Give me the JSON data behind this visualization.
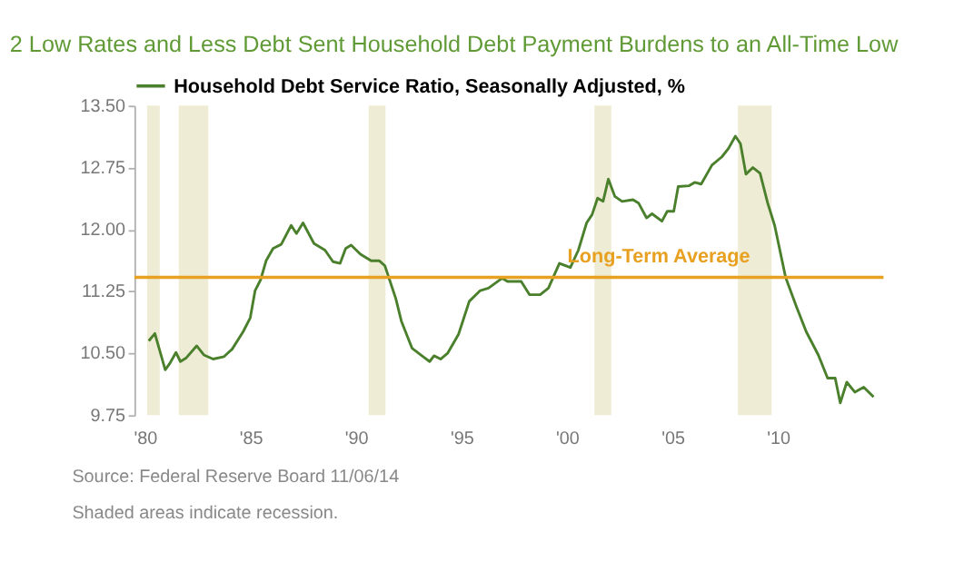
{
  "chart_data": {
    "type": "line",
    "title": "2    Low Rates and Less Debt Sent Household Debt Payment Burdens to an All-Time Low",
    "series": [
      {
        "name": "Household Debt Service Ratio, Seasonally Adjusted, %",
        "color": "#4a7f2c",
        "x": [
          1980.18,
          1980.47,
          1980.96,
          1981.16,
          1981.47,
          1981.68,
          1981.94,
          1982.45,
          1982.79,
          1983.23,
          1983.75,
          1984.13,
          1984.65,
          1984.99,
          1985.22,
          1985.48,
          1985.74,
          1986.07,
          1986.46,
          1986.93,
          1987.18,
          1987.49,
          1988.01,
          1988.53,
          1988.91,
          1989.25,
          1989.51,
          1989.77,
          1990.21,
          1990.72,
          1991.11,
          1991.37,
          1991.89,
          1992.15,
          1992.66,
          1993.18,
          1993.49,
          1993.7,
          1994.01,
          1994.34,
          1994.86,
          1995.37,
          1995.89,
          1996.28,
          1996.93,
          1997.18,
          1997.83,
          1998.22,
          1998.73,
          1999.12,
          1999.64,
          2000.16,
          2000.54,
          2000.93,
          2001.19,
          2001.45,
          2001.71,
          2001.96,
          2002.27,
          2002.61,
          2003.13,
          2003.39,
          2003.77,
          2004.03,
          2004.5,
          2004.75,
          2005.06,
          2005.27,
          2005.79,
          2006.05,
          2006.36,
          2006.87,
          2007.34,
          2007.65,
          2007.98,
          2008.22,
          2008.48,
          2008.81,
          2009.15,
          2009.51,
          2009.84,
          2010.36,
          2010.88,
          2011.34,
          2011.91,
          2012.35,
          2012.71,
          2012.95,
          2013.26,
          2013.64,
          2014.06,
          2014.53
        ],
        "values": [
          10.65,
          10.74,
          10.3,
          10.37,
          10.51,
          10.4,
          10.44,
          10.59,
          10.48,
          10.43,
          10.46,
          10.55,
          10.76,
          10.93,
          11.26,
          11.39,
          11.62,
          11.77,
          11.82,
          12.05,
          11.95,
          12.08,
          11.83,
          11.75,
          11.61,
          11.59,
          11.77,
          11.81,
          11.7,
          11.62,
          11.62,
          11.56,
          11.16,
          10.89,
          10.56,
          10.46,
          10.4,
          10.47,
          10.43,
          10.5,
          10.73,
          11.13,
          11.26,
          11.29,
          11.41,
          11.37,
          11.37,
          11.21,
          11.21,
          11.29,
          11.59,
          11.54,
          11.75,
          12.08,
          12.18,
          12.38,
          12.34,
          12.61,
          12.4,
          12.34,
          12.36,
          12.32,
          12.14,
          12.19,
          12.1,
          12.22,
          12.22,
          12.52,
          12.53,
          12.57,
          12.55,
          12.78,
          12.88,
          12.98,
          13.13,
          13.04,
          12.67,
          12.75,
          12.68,
          12.32,
          12.05,
          11.42,
          11.06,
          10.76,
          10.48,
          10.2,
          10.2,
          9.9,
          10.15,
          10.03,
          10.09,
          9.97
        ]
      }
    ],
    "xlim": [
      1979.5,
      2015
    ],
    "xticks": [
      {
        "value": 1980,
        "label": "'80"
      },
      {
        "value": 1985,
        "label": "'85"
      },
      {
        "value": 1990,
        "label": "'90"
      },
      {
        "value": 1995,
        "label": "'95"
      },
      {
        "value": 2000,
        "label": "'00"
      },
      {
        "value": 2005,
        "label": "'05"
      },
      {
        "value": 2010,
        "label": "'10"
      }
    ],
    "ylim": [
      9.75,
      13.5
    ],
    "yticks": [
      {
        "value": 9.75,
        "label": "9.75"
      },
      {
        "value": 10.5,
        "label": "10.50"
      },
      {
        "value": 11.25,
        "label": "11.25"
      },
      {
        "value": 12,
        "label": "12.00"
      },
      {
        "value": 12.75,
        "label": "12.75"
      },
      {
        "value": 13.5,
        "label": "13.50"
      }
    ],
    "ref_lines": [
      {
        "axis": "y",
        "value": 11.42,
        "label": "Long-Term Average",
        "color": "#e8a020"
      }
    ],
    "bands": [
      {
        "axis": "x",
        "from": 1980.1,
        "to": 1980.7,
        "color": "#efecd6"
      },
      {
        "axis": "x",
        "from": 1981.6,
        "to": 1983.0,
        "color": "#efecd6"
      },
      {
        "axis": "x",
        "from": 1990.6,
        "to": 1991.4,
        "color": "#efecd6"
      },
      {
        "axis": "x",
        "from": 2001.3,
        "to": 2002.1,
        "color": "#efecd6"
      },
      {
        "axis": "x",
        "from": 2008.1,
        "to": 2009.7,
        "color": "#efecd6"
      }
    ],
    "annotations": [
      "Source: Federal Reserve Board   11/06/14",
      "Shaded areas indicate recession."
    ],
    "legend": "top",
    "grid": false
  }
}
